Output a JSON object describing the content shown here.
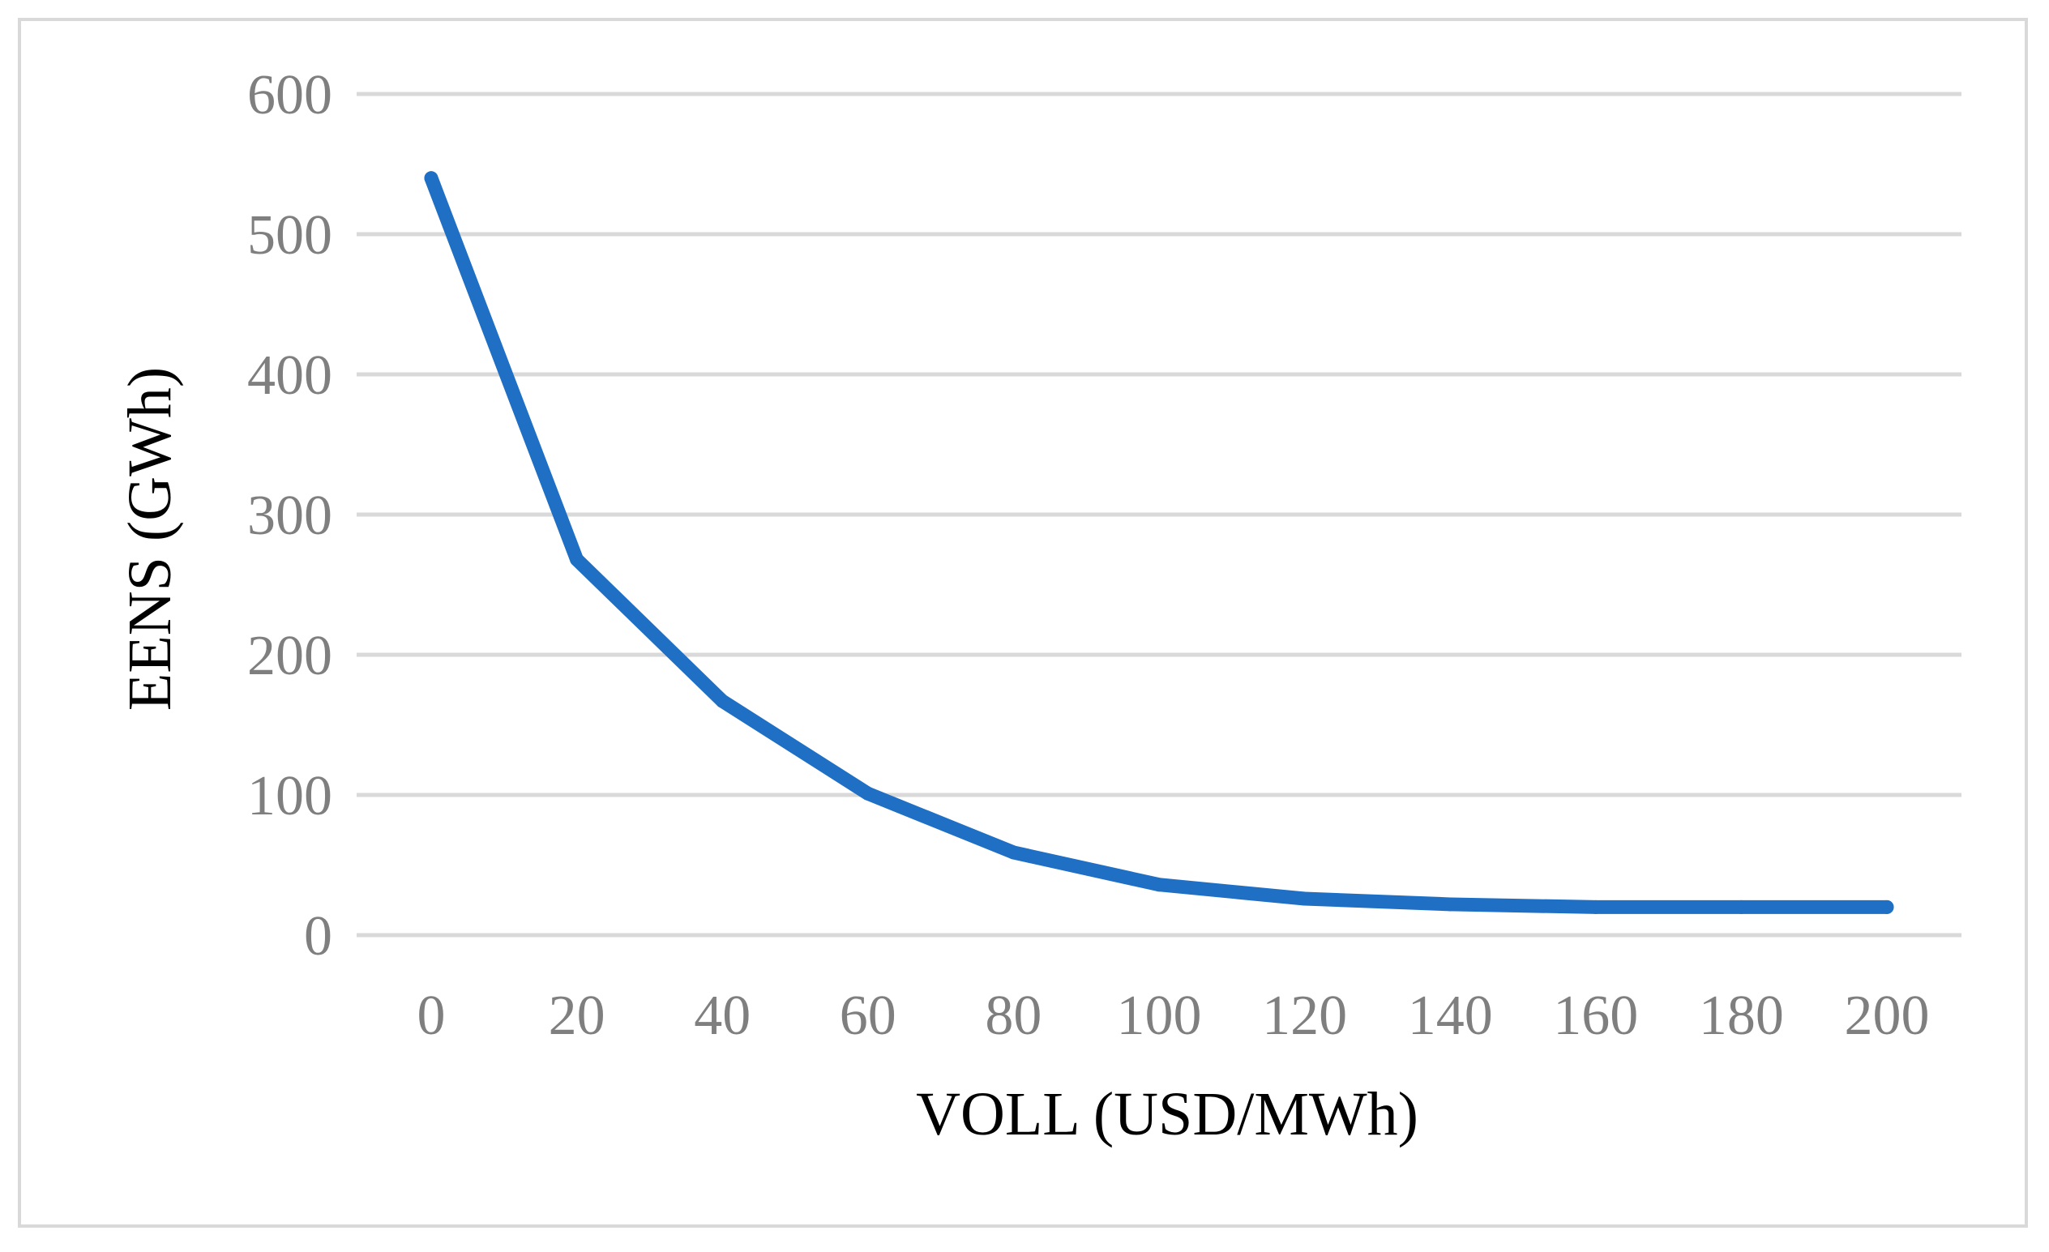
{
  "chart_data": {
    "type": "line",
    "title": "",
    "xlabel": "VOLL (USD/MWh)",
    "ylabel": "EENS (GWh)",
    "x": [
      0,
      20,
      40,
      60,
      80,
      100,
      120,
      140,
      160,
      180,
      200
    ],
    "categories": [
      "0",
      "20",
      "40",
      "60",
      "80",
      "100",
      "120",
      "140",
      "160",
      "180",
      "200"
    ],
    "series": [
      {
        "values": [
          540,
          268,
          167,
          101,
          59,
          36,
          26,
          22,
          20,
          20,
          20
        ],
        "color": "#1f6fc5"
      }
    ],
    "ylim": [
      0,
      600
    ],
    "yticks": [
      0,
      100,
      200,
      300,
      400,
      500,
      600
    ],
    "grid": true,
    "legend": "none"
  }
}
